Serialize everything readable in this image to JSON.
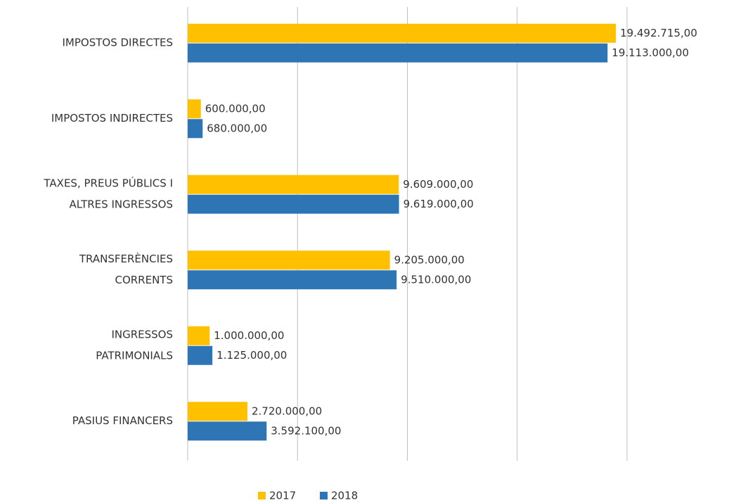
{
  "chart_data": {
    "type": "hbar",
    "categories": [
      [
        "IMPOSTOS DIRECTES"
      ],
      [
        "IMPOSTOS INDIRECTES"
      ],
      [
        "TAXES, PREUS PÚBLICS I",
        "ALTRES INGRESSOS"
      ],
      [
        "TRANSFERÈNCIES",
        "CORRENTS"
      ],
      [
        "INGRESSOS",
        "PATRIMONIALS"
      ],
      [
        "PASIUS FINANCERS"
      ]
    ],
    "series": [
      {
        "name": "2017",
        "color": "#FFC000",
        "values": [
          19492715,
          600000,
          9609000,
          9205000,
          1000000,
          2720000
        ],
        "value_labels": [
          "19.492.715,00",
          "600.000,00",
          "9.609.000,00",
          "9.205.000,00",
          "1.000.000,00",
          "2.720.000,00"
        ]
      },
      {
        "name": "2018",
        "color": "#2E75B6",
        "values": [
          19113000,
          680000,
          9619000,
          9510000,
          1125000,
          3592100
        ],
        "value_labels": [
          "19.113.000,00",
          "680.000,00",
          "9.619.000,00",
          "9.510.000,00",
          "1.125.000,00",
          "3.592.100,00"
        ]
      }
    ],
    "xlim": [
      0,
      20000000
    ],
    "xticks": [
      0,
      5000000,
      10000000,
      15000000,
      20000000
    ],
    "grid": true,
    "legend": "bottom"
  }
}
